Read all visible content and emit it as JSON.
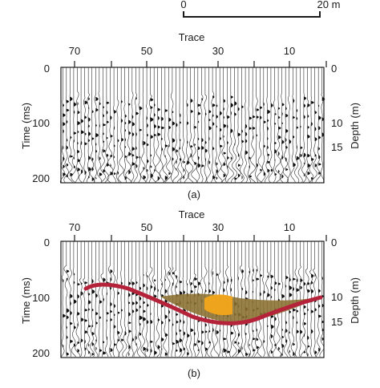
{
  "scale_bar": {
    "left_label": "0",
    "right_label": "20 m"
  },
  "panel_a": {
    "x_title": "Trace",
    "top_ticks": [
      "70",
      "50",
      "30",
      "10"
    ],
    "left_ticks": [
      "0",
      "100",
      "200"
    ],
    "right_ticks": [
      "0",
      "10",
      "15"
    ],
    "left_axis_label": "Time (ms)",
    "right_axis_label": "Depth (m)",
    "caption": "(a)"
  },
  "panel_b": {
    "x_title": "Trace",
    "top_ticks": [
      "70",
      "50",
      "30",
      "10"
    ],
    "left_ticks": [
      "0",
      "100",
      "200"
    ],
    "right_ticks": [
      "0",
      "10",
      "15"
    ],
    "left_axis_label": "Time (ms)",
    "right_axis_label": "Depth (m)",
    "caption": "(b)"
  },
  "colors": {
    "interpreted_horizon": "#b5233a",
    "infill_outer": "#8a6f2f",
    "infill_inner": "#f2a51a"
  }
}
